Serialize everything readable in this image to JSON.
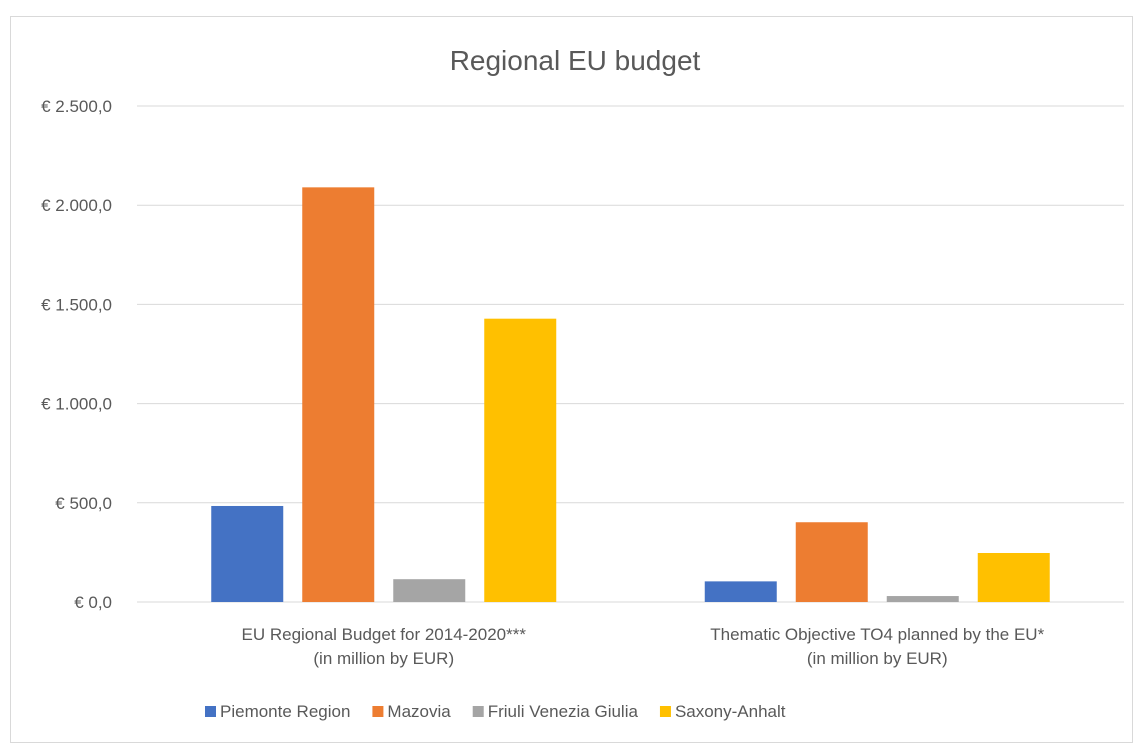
{
  "chart_data": {
    "type": "bar",
    "title": "Regional EU budget",
    "categories": [
      [
        "EU Regional Budget for 2014-2020***",
        "(in million by EUR)"
      ],
      [
        "Thematic Objective TO4 planned by the EU*",
        "(in million by EUR)"
      ]
    ],
    "series": [
      {
        "name": "Piemonte Region",
        "color": "#4472C4",
        "values": [
          484,
          104
        ]
      },
      {
        "name": "Mazovia",
        "color": "#ED7D31",
        "values": [
          2090,
          402
        ]
      },
      {
        "name": "Friuli Venezia Giulia",
        "color": "#A5A5A5",
        "values": [
          115,
          30
        ]
      },
      {
        "name": "Saxony-Anhalt",
        "color": "#FFC000",
        "values": [
          1428,
          247
        ]
      }
    ],
    "ylim": [
      0,
      2500
    ],
    "yticks": [
      0,
      500,
      1000,
      1500,
      2000,
      2500
    ],
    "ytick_labels": [
      "€ 0,0",
      "€ 500,0",
      "€ 1.000,0",
      "€ 1.500,0",
      "€ 2.000,0",
      "€ 2.500,0"
    ],
    "grid": true,
    "legend_position": "bottom",
    "gridline_color": "#d9d9d9"
  }
}
